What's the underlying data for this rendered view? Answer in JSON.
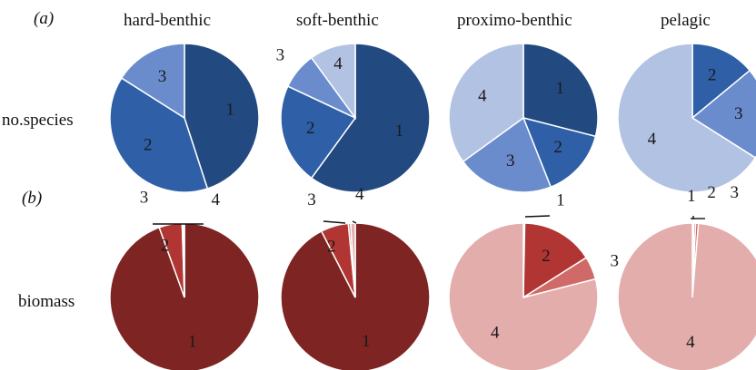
{
  "panels": {
    "a": "(a)",
    "b": "(b)"
  },
  "columns": [
    "hard-benthic",
    "soft-benthic",
    "proximo-benthic",
    "pelagic"
  ],
  "row_labels": [
    "no.species",
    "biomass"
  ],
  "chart_data": [
    {
      "type": "pie",
      "panel": "(a)",
      "row": "no.species",
      "pies": [
        {
          "title": "hard-benthic",
          "slices": [
            {
              "label": "1",
              "value": 45
            },
            {
              "label": "2",
              "value": 39
            },
            {
              "label": "3",
              "value": 16
            }
          ]
        },
        {
          "title": "soft-benthic",
          "slices": [
            {
              "label": "1",
              "value": 60
            },
            {
              "label": "2",
              "value": 22
            },
            {
              "label": "3",
              "value": 8
            },
            {
              "label": "4",
              "value": 10
            }
          ]
        },
        {
          "title": "proximo-benthic",
          "slices": [
            {
              "label": "1",
              "value": 29
            },
            {
              "label": "2",
              "value": 15
            },
            {
              "label": "3",
              "value": 21
            },
            {
              "label": "4",
              "value": 35
            }
          ]
        },
        {
          "title": "pelagic",
          "slices": [
            {
              "label": "2",
              "value": 14
            },
            {
              "label": "3",
              "value": 20
            },
            {
              "label": "4",
              "value": 66
            }
          ]
        }
      ],
      "colors": {
        "1": "#234a80",
        "2": "#2e5fa7",
        "3": "#6b8ccc",
        "4": "#b2c2e2"
      }
    },
    {
      "type": "pie",
      "panel": "(b)",
      "row": "biomass",
      "pies": [
        {
          "title": "hard-benthic",
          "slices": [
            {
              "label": "1",
              "value": 94.5
            },
            {
              "label": "2",
              "value": 5
            },
            {
              "label": "3",
              "value": 0.25
            },
            {
              "label": "4",
              "value": 0.25
            }
          ]
        },
        {
          "title": "soft-benthic",
          "slices": [
            {
              "label": "1",
              "value": 92.5
            },
            {
              "label": "2",
              "value": 6
            },
            {
              "label": "3",
              "value": 0.5
            },
            {
              "label": "4",
              "value": 1
            }
          ]
        },
        {
          "title": "proximo-benthic",
          "slices": [
            {
              "label": "1",
              "value": 0.3
            },
            {
              "label": "2",
              "value": 15.7
            },
            {
              "label": "3",
              "value": 5
            },
            {
              "label": "4",
              "value": 79
            }
          ]
        },
        {
          "title": "pelagic",
          "slices": [
            {
              "label": "1",
              "value": 0.3
            },
            {
              "label": "2",
              "value": 0.4
            },
            {
              "label": "3",
              "value": 0.6
            },
            {
              "label": "4",
              "value": 98.7
            }
          ]
        }
      ],
      "colors": {
        "1": "#7e2423",
        "2": "#b03533",
        "3": "#cf6a68",
        "4": "#e3adac"
      }
    }
  ]
}
